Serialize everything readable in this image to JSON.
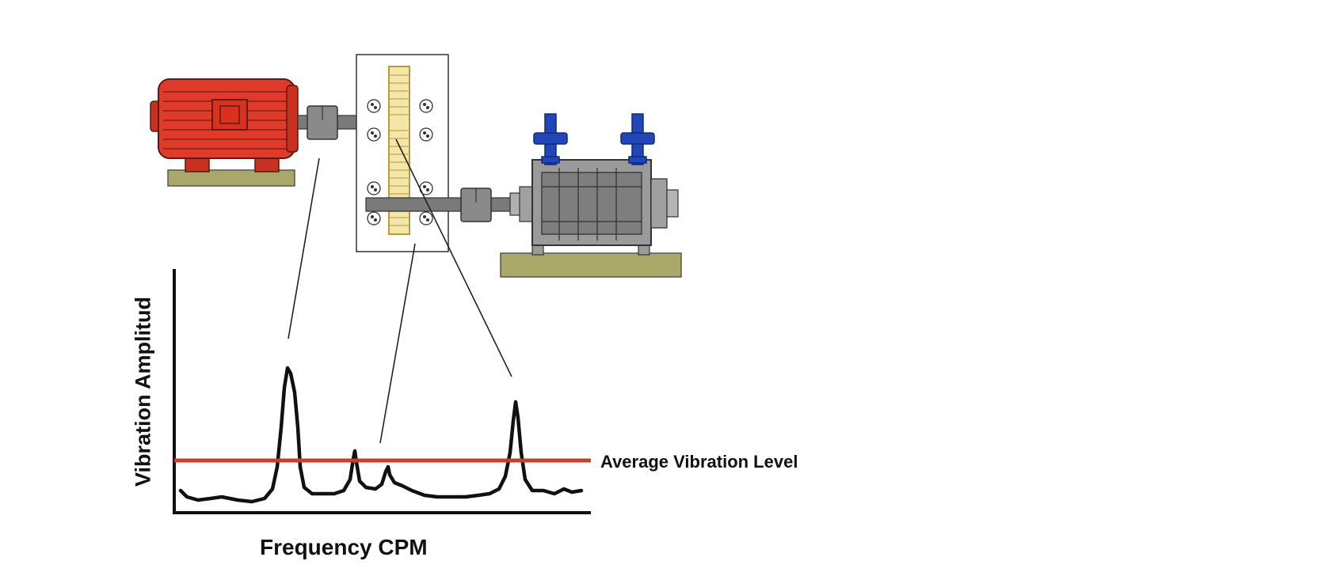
{
  "diagram": {
    "y_axis_label": "Vibration Amplitud",
    "x_axis_label": "Frequency CPM",
    "reference_line_label": "Average Vibration Level",
    "colors": {
      "motor": "#e03a2a",
      "base": "#a9a868",
      "pump_casing": "#9a9a9a",
      "pump_pipes": "#2246b8",
      "gear": "#f2e6a8",
      "average_line": "#c0442a",
      "spectrum": "#111111"
    },
    "components": [
      "motor",
      "coupling",
      "gearbox",
      "pump"
    ],
    "spectrum_peaks": [
      {
        "source": "motor",
        "relative_amplitude": 0.58
      },
      {
        "source": "gear-mesh-1",
        "relative_amplitude": 0.27
      },
      {
        "source": "gear-mesh-2",
        "relative_amplitude": 0.22
      },
      {
        "source": "pump",
        "relative_amplitude": 0.47
      }
    ]
  }
}
